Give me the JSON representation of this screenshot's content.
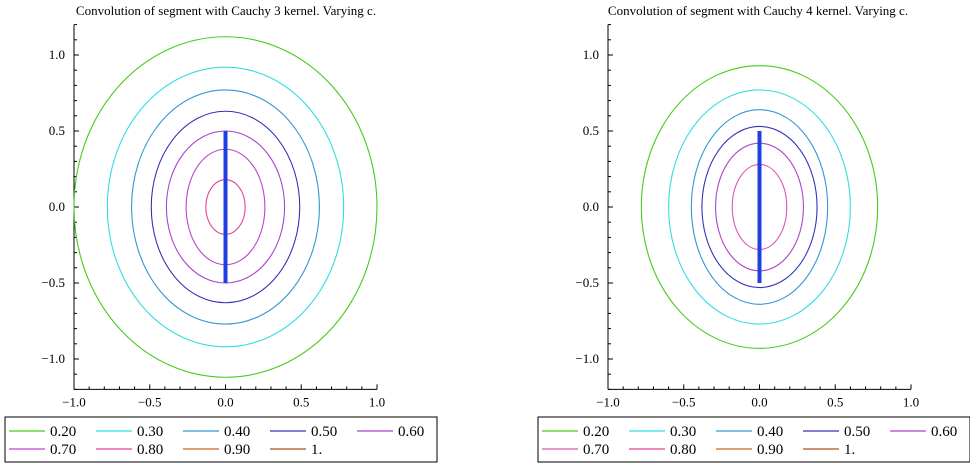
{
  "chart_data": [
    {
      "type": "contour",
      "title": "Convolution of segment with Cauchy 3 kernel. Varying c.",
      "xlim": [
        -1.0,
        1.0
      ],
      "ylim": [
        -1.2,
        1.2
      ],
      "xticks": [
        "−1.0",
        "−0.5",
        "0.0",
        "0.5",
        "1.0"
      ],
      "xtick_values": [
        -1.0,
        -0.5,
        0.0,
        0.5,
        1.0
      ],
      "yticks": [
        "−1.0",
        "−0.5",
        "0.0",
        "0.5",
        "1.0"
      ],
      "ytick_values": [
        -1.0,
        -0.5,
        0.0,
        0.5,
        1.0
      ],
      "segment": {
        "x": 0.0,
        "y0": -0.5,
        "y1": 0.5,
        "color": "#1f3fe0"
      },
      "series": [
        {
          "name": "0.20",
          "color": "#44cc1a",
          "rx": 1.0,
          "ry": 1.12
        },
        {
          "name": "0.30",
          "color": "#33dde0",
          "rx": 0.78,
          "ry": 0.92
        },
        {
          "name": "0.40",
          "color": "#3399cc",
          "rx": 0.62,
          "ry": 0.77
        },
        {
          "name": "0.50",
          "color": "#3333bb",
          "rx": 0.49,
          "ry": 0.63
        },
        {
          "name": "0.60",
          "color": "#aa44cc",
          "rx": 0.39,
          "ry": 0.5
        },
        {
          "name": "0.70",
          "color": "#bb44cc",
          "rx": 0.26,
          "ry": 0.38
        },
        {
          "name": "0.80",
          "color": "#e0449a",
          "rx": 0.13,
          "ry": 0.18
        },
        {
          "name": "0.90",
          "color": "#cc6622",
          "rx": null,
          "ry": null
        },
        {
          "name": "1.",
          "color": "#aa5522",
          "rx": null,
          "ry": null
        }
      ]
    },
    {
      "type": "contour",
      "title": "Convolution of segment with Cauchy 4 kernel. Varying c.",
      "xlim": [
        -1.0,
        1.0
      ],
      "ylim": [
        -1.2,
        1.2
      ],
      "xticks": [
        "−1.0",
        "−0.5",
        "0.0",
        "0.5",
        "1.0"
      ],
      "xtick_values": [
        -1.0,
        -0.5,
        0.0,
        0.5,
        1.0
      ],
      "yticks": [
        "−1.0",
        "−0.5",
        "0.0",
        "0.5",
        "1.0"
      ],
      "ytick_values": [
        -1.0,
        -0.5,
        0.0,
        0.5,
        1.0
      ],
      "segment": {
        "x": 0.0,
        "y0": -0.5,
        "y1": 0.5,
        "color": "#1f3fe0"
      },
      "series": [
        {
          "name": "0.20",
          "color": "#44cc1a",
          "rx": 0.78,
          "ry": 0.93
        },
        {
          "name": "0.30",
          "color": "#33dde0",
          "rx": 0.6,
          "ry": 0.77
        },
        {
          "name": "0.40",
          "color": "#3399cc",
          "rx": 0.45,
          "ry": 0.64
        },
        {
          "name": "0.50",
          "color": "#3333bb",
          "rx": 0.38,
          "ry": 0.53
        },
        {
          "name": "0.60",
          "color": "#aa44cc",
          "rx": 0.29,
          "ry": 0.42
        },
        {
          "name": "0.70",
          "color": "#dd55bb",
          "rx": 0.18,
          "ry": 0.28
        },
        {
          "name": "0.80",
          "color": "#e0449a",
          "rx": null,
          "ry": null
        },
        {
          "name": "0.90",
          "color": "#cc6622",
          "rx": null,
          "ry": null
        },
        {
          "name": "1.",
          "color": "#aa5522",
          "rx": null,
          "ry": null
        }
      ]
    }
  ]
}
